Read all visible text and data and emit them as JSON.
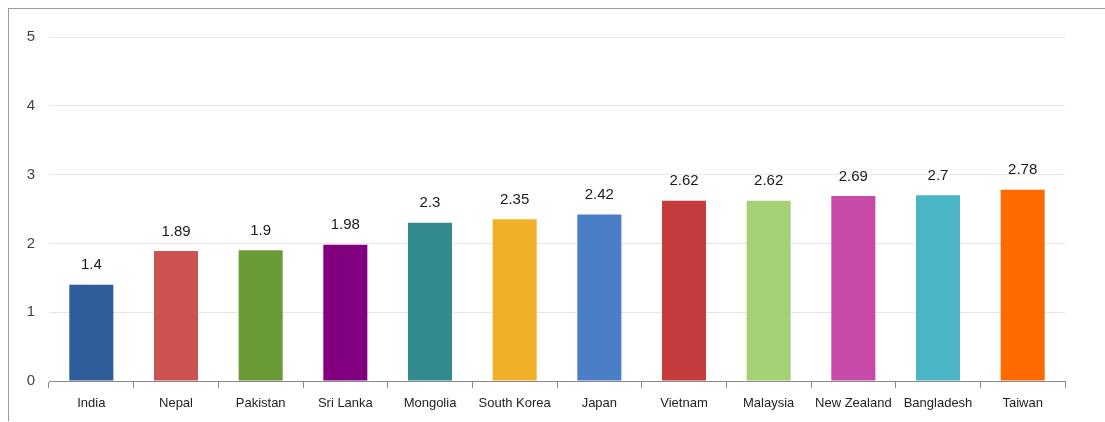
{
  "chart_data": {
    "type": "bar",
    "categories": [
      "India",
      "Nepal",
      "Pakistan",
      "Sri Lanka",
      "Mongolia",
      "South Korea",
      "Japan",
      "Vietnam",
      "Malaysia",
      "New Zealand",
      "Bangladesh",
      "Taiwan"
    ],
    "values": [
      1.4,
      1.89,
      1.9,
      1.98,
      2.3,
      2.35,
      2.42,
      2.62,
      2.62,
      2.69,
      2.7,
      2.78
    ],
    "colors": [
      "#2e5d9a",
      "#cc5252",
      "#6a9a35",
      "#800080",
      "#338a8e",
      "#f0b02a",
      "#4a7fc8",
      "#c43c3c",
      "#a4d173",
      "#c84aa8",
      "#4ab5c4",
      "#ff6a00"
    ],
    "ylim": [
      0,
      5
    ],
    "yticks": [
      0,
      1,
      2,
      3,
      4,
      5
    ],
    "grid": "y",
    "data_labels": true
  }
}
